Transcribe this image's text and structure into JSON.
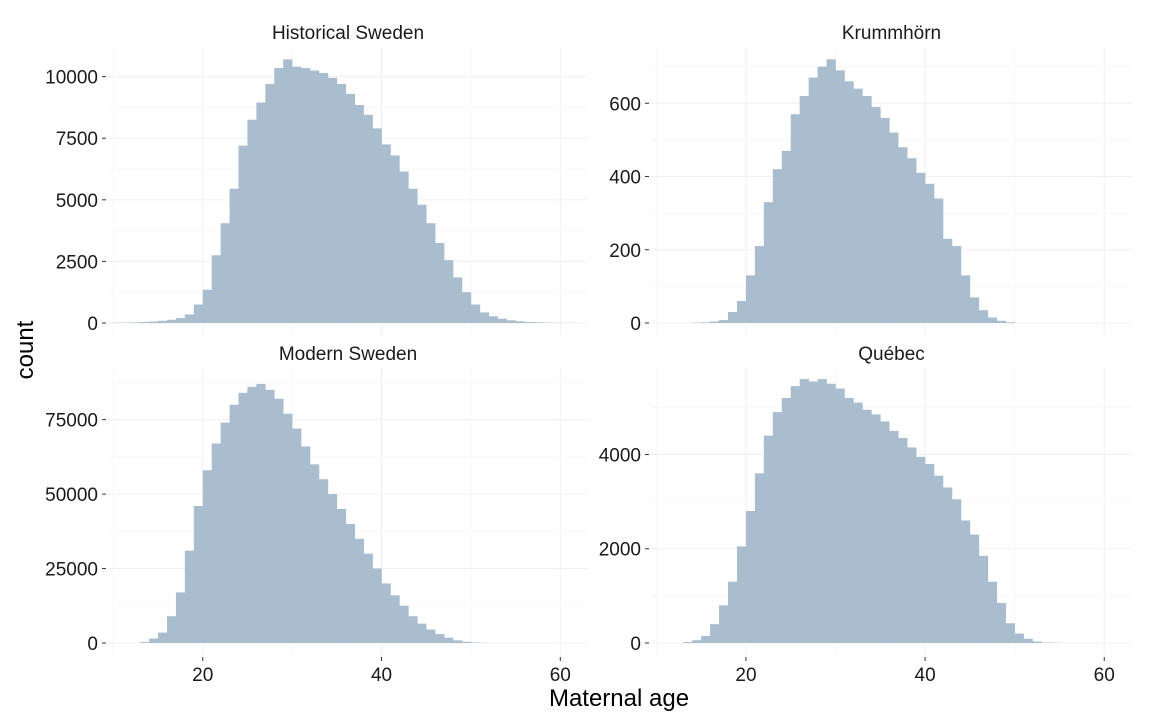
{
  "chart_data": {
    "type": "histogram-facets",
    "xlabel": "Maternal age",
    "ylabel": "count",
    "bar_color": "#a9bdcf",
    "bin_width": 1,
    "x_range": [
      10,
      62
    ],
    "x_ticks": [
      20,
      40,
      60
    ],
    "panels": [
      {
        "title": "Historical Sweden",
        "ylim": [
          0,
          11000
        ],
        "y_ticks": [
          0,
          2500,
          5000,
          7500,
          10000
        ],
        "y_tick_labels": [
          "0",
          "2500",
          "5000",
          "7500",
          "10000"
        ],
        "show_x_ticks": false,
        "bins_start": 10,
        "counts": [
          10,
          15,
          25,
          40,
          60,
          90,
          130,
          200,
          350,
          750,
          1350,
          2750,
          4050,
          5450,
          7200,
          8250,
          8950,
          9700,
          10350,
          10700,
          10400,
          10350,
          10250,
          10150,
          9950,
          9700,
          9300,
          8850,
          8450,
          7900,
          7250,
          6800,
          6150,
          5450,
          4800,
          4050,
          3250,
          2550,
          1850,
          1250,
          750,
          430,
          270,
          170,
          110,
          70,
          40,
          25,
          15,
          8,
          5,
          3
        ]
      },
      {
        "title": "Krummhörn",
        "ylim": [
          0,
          740
        ],
        "y_ticks": [
          0,
          200,
          400,
          600
        ],
        "y_tick_labels": [
          "0",
          "200",
          "400",
          "600"
        ],
        "show_x_ticks": false,
        "bins_start": 14,
        "counts": [
          1,
          2,
          4,
          8,
          30,
          60,
          130,
          210,
          330,
          420,
          470,
          570,
          620,
          670,
          700,
          720,
          690,
          660,
          640,
          620,
          590,
          560,
          520,
          480,
          450,
          410,
          380,
          340,
          230,
          210,
          130,
          70,
          35,
          15,
          6,
          2
        ]
      },
      {
        "title": "Modern Sweden",
        "ylim": [
          0,
          91000
        ],
        "y_ticks": [
          0,
          25000,
          50000,
          75000
        ],
        "y_tick_labels": [
          "0",
          "25000",
          "50000",
          "75000"
        ],
        "show_x_ticks": true,
        "bins_start": 13,
        "counts": [
          300,
          1500,
          3500,
          9000,
          17000,
          31000,
          46000,
          58000,
          67000,
          74000,
          80000,
          84000,
          86000,
          87000,
          85000,
          82000,
          77000,
          72000,
          66000,
          60000,
          55000,
          50000,
          45000,
          40000,
          35000,
          30000,
          25000,
          20000,
          16000,
          12500,
          9000,
          6500,
          4500,
          3000,
          1800,
          900,
          400,
          150,
          60
        ]
      },
      {
        "title": "Québec",
        "ylim": [
          0,
          5750
        ],
        "y_ticks": [
          0,
          2000,
          4000
        ],
        "y_tick_labels": [
          "0",
          "2000",
          "4000"
        ],
        "show_x_ticks": true,
        "bins_start": 13,
        "counts": [
          20,
          60,
          150,
          400,
          800,
          1300,
          2050,
          2800,
          3600,
          4400,
          4900,
          5200,
          5450,
          5600,
          5550,
          5600,
          5500,
          5400,
          5200,
          5100,
          4950,
          4850,
          4700,
          4500,
          4350,
          4150,
          3950,
          3800,
          3550,
          3300,
          3050,
          2600,
          2300,
          1850,
          1300,
          850,
          420,
          200,
          90,
          30,
          10,
          5
        ]
      }
    ]
  }
}
